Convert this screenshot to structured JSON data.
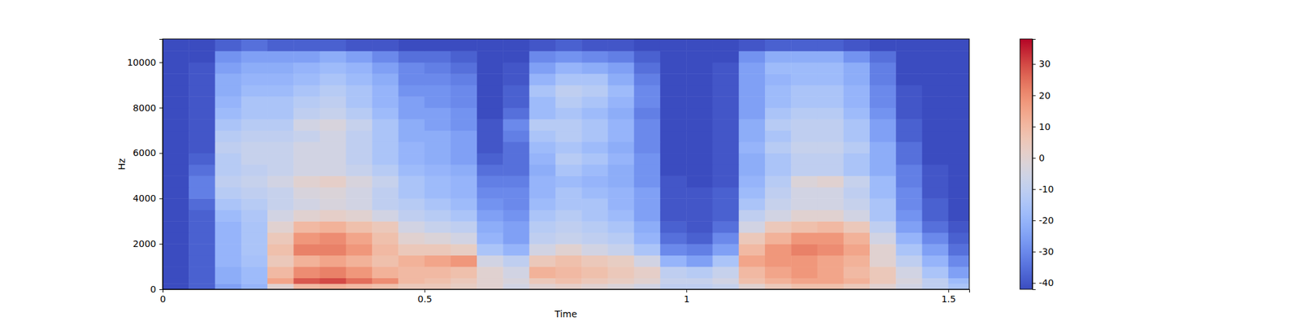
{
  "chart_data": {
    "type": "heatmap",
    "xlabel": "Time",
    "ylabel": "Hz",
    "xlim": [
      0,
      1.54
    ],
    "ylim": [
      0,
      11025
    ],
    "xticks": [
      0,
      0.5,
      1,
      1.5
    ],
    "yticks": [
      0,
      2000,
      4000,
      6000,
      8000,
      10000
    ],
    "x_bins": [
      0,
      0.05,
      0.1,
      0.15,
      0.2,
      0.25,
      0.3,
      0.35,
      0.4,
      0.45,
      0.5,
      0.55,
      0.6,
      0.65,
      0.7,
      0.75,
      0.8,
      0.85,
      0.9,
      0.95,
      1.0,
      1.05,
      1.1,
      1.15,
      1.2,
      1.25,
      1.3,
      1.35,
      1.4,
      1.45,
      1.5,
      1.54
    ],
    "y_bins": [
      0,
      250,
      500,
      1000,
      1500,
      2000,
      2500,
      3000,
      3500,
      4000,
      4500,
      5000,
      5500,
      6000,
      6500,
      7000,
      7500,
      8000,
      8500,
      9000,
      9500,
      10000,
      10500,
      11025
    ],
    "values": [
      [
        -42,
        -38,
        -25,
        -20,
        0,
        10,
        12,
        10,
        8,
        5,
        5,
        3,
        0,
        -5,
        0,
        2,
        0,
        -2,
        -5,
        -10,
        -10,
        -8,
        0,
        5,
        8,
        8,
        5,
        0,
        -5,
        -10,
        -15
      ],
      [
        -42,
        -38,
        -22,
        -18,
        15,
        28,
        30,
        25,
        20,
        10,
        8,
        5,
        0,
        -3,
        5,
        8,
        5,
        3,
        0,
        -8,
        -8,
        -5,
        8,
        12,
        15,
        15,
        12,
        5,
        -3,
        -10,
        -18
      ],
      [
        -42,
        -38,
        -22,
        -18,
        10,
        20,
        22,
        18,
        12,
        10,
        10,
        8,
        0,
        -5,
        12,
        10,
        8,
        5,
        2,
        -10,
        -12,
        -8,
        10,
        15,
        18,
        15,
        10,
        5,
        -5,
        -15,
        -25
      ],
      [
        -42,
        -38,
        -20,
        -16,
        5,
        12,
        15,
        12,
        8,
        12,
        15,
        18,
        -5,
        -10,
        5,
        8,
        5,
        3,
        -5,
        -20,
        -25,
        -15,
        15,
        18,
        18,
        15,
        12,
        0,
        -10,
        -20,
        -30
      ],
      [
        -42,
        -38,
        -20,
        -15,
        8,
        22,
        22,
        18,
        10,
        5,
        5,
        3,
        -15,
        -20,
        -5,
        0,
        -5,
        -8,
        -15,
        -30,
        -32,
        -25,
        10,
        18,
        22,
        20,
        15,
        0,
        -15,
        -25,
        -35
      ],
      [
        -42,
        -38,
        -20,
        -15,
        5,
        18,
        20,
        15,
        8,
        0,
        -2,
        -5,
        -20,
        -25,
        -10,
        -8,
        -10,
        -12,
        -20,
        -35,
        -38,
        -30,
        5,
        12,
        18,
        18,
        12,
        -5,
        -20,
        -30,
        -38
      ],
      [
        -42,
        -38,
        -20,
        -15,
        0,
        10,
        12,
        8,
        5,
        -5,
        -8,
        -10,
        -22,
        -25,
        -12,
        -10,
        -12,
        -15,
        -22,
        -38,
        -40,
        -35,
        -5,
        5,
        8,
        10,
        5,
        -10,
        -25,
        -35,
        -40
      ],
      [
        -42,
        -38,
        -18,
        -14,
        -5,
        0,
        2,
        0,
        -5,
        -10,
        -12,
        -15,
        -25,
        -28,
        -15,
        -12,
        -15,
        -18,
        -25,
        -40,
        -40,
        -38,
        -10,
        -5,
        0,
        0,
        -5,
        -15,
        -28,
        -38,
        -42
      ],
      [
        -42,
        -36,
        -15,
        -12,
        -8,
        -5,
        -3,
        -5,
        -10,
        -12,
        -15,
        -18,
        -28,
        -30,
        -18,
        -15,
        -15,
        -20,
        -25,
        -40,
        -40,
        -38,
        -15,
        -8,
        -5,
        -5,
        -8,
        -15,
        -30,
        -38,
        -42
      ],
      [
        -42,
        -32,
        -12,
        -10,
        -8,
        -3,
        -2,
        -5,
        -10,
        -15,
        -18,
        -20,
        -30,
        -30,
        -20,
        -15,
        -18,
        -20,
        -25,
        -40,
        -40,
        -38,
        -18,
        -10,
        -5,
        -5,
        -10,
        -18,
        -30,
        -40,
        -42
      ],
      [
        -42,
        -32,
        -10,
        -8,
        -5,
        0,
        2,
        -3,
        -8,
        -15,
        -18,
        -20,
        -32,
        -32,
        -20,
        -18,
        -20,
        -22,
        -28,
        -40,
        -42,
        -40,
        -20,
        -12,
        -2,
        0,
        -8,
        -18,
        -32,
        -40,
        -42
      ],
      [
        -42,
        -35,
        -12,
        -10,
        -8,
        -5,
        -5,
        -8,
        -12,
        -18,
        -20,
        -22,
        -35,
        -35,
        -22,
        -15,
        -18,
        -22,
        -28,
        -42,
        -42,
        -40,
        -22,
        -15,
        -10,
        -10,
        -15,
        -22,
        -32,
        -40,
        -42
      ],
      [
        -42,
        -38,
        -12,
        -8,
        -8,
        -5,
        -5,
        -10,
        -15,
        -20,
        -22,
        -25,
        -38,
        -35,
        -20,
        -12,
        -15,
        -20,
        -28,
        -42,
        -42,
        -40,
        -22,
        -15,
        -10,
        -10,
        -15,
        -22,
        -35,
        -42,
        -42
      ],
      [
        -42,
        -40,
        -10,
        -8,
        -8,
        -5,
        -5,
        -10,
        -15,
        -20,
        -22,
        -25,
        -40,
        -35,
        -18,
        -15,
        -18,
        -22,
        -30,
        -42,
        -42,
        -40,
        -20,
        -12,
        -8,
        -8,
        -12,
        -22,
        -35,
        -42,
        -42
      ],
      [
        -42,
        -40,
        -12,
        -10,
        -10,
        -8,
        -5,
        -10,
        -15,
        -22,
        -22,
        -25,
        -40,
        -32,
        -15,
        -12,
        -15,
        -20,
        -30,
        -42,
        -42,
        -40,
        -22,
        -15,
        -10,
        -10,
        -15,
        -25,
        -38,
        -42,
        -42
      ],
      [
        -42,
        -40,
        -15,
        -12,
        -12,
        -5,
        -3,
        -8,
        -15,
        -22,
        -25,
        -28,
        -40,
        -30,
        -12,
        -12,
        -15,
        -20,
        -30,
        -42,
        -42,
        -40,
        -22,
        -12,
        -10,
        -10,
        -15,
        -25,
        -38,
        -42,
        -42
      ],
      [
        -42,
        -40,
        -18,
        -15,
        -15,
        -10,
        -8,
        -12,
        -18,
        -25,
        -25,
        -28,
        -42,
        -35,
        -18,
        -15,
        -18,
        -22,
        -32,
        -42,
        -42,
        -40,
        -25,
        -15,
        -12,
        -12,
        -18,
        -28,
        -40,
        -42,
        -42
      ],
      [
        -42,
        -40,
        -20,
        -15,
        -15,
        -12,
        -10,
        -15,
        -20,
        -25,
        -28,
        -30,
        -42,
        -38,
        -18,
        -12,
        -15,
        -20,
        -30,
        -42,
        -42,
        -40,
        -25,
        -18,
        -15,
        -15,
        -20,
        -30,
        -40,
        -42,
        -42
      ],
      [
        -42,
        -40,
        -22,
        -18,
        -18,
        -15,
        -12,
        -15,
        -20,
        -28,
        -28,
        -30,
        -42,
        -38,
        -15,
        -10,
        -12,
        -18,
        -30,
        -42,
        -42,
        -40,
        -25,
        -18,
        -15,
        -15,
        -20,
        -30,
        -40,
        -42,
        -42
      ],
      [
        -42,
        -40,
        -22,
        -20,
        -20,
        -18,
        -15,
        -18,
        -22,
        -30,
        -30,
        -32,
        -42,
        -40,
        -20,
        -15,
        -15,
        -22,
        -32,
        -42,
        -42,
        -40,
        -25,
        -20,
        -18,
        -18,
        -22,
        -32,
        -42,
        -42,
        -42
      ],
      [
        -42,
        -40,
        -25,
        -22,
        -22,
        -20,
        -18,
        -20,
        -25,
        -30,
        -32,
        -35,
        -42,
        -40,
        -25,
        -20,
        -22,
        -25,
        -35,
        -42,
        -42,
        -40,
        -25,
        -18,
        -18,
        -18,
        -22,
        -32,
        -42,
        -42,
        -42
      ],
      [
        -42,
        -42,
        -28,
        -25,
        -25,
        -25,
        -22,
        -25,
        -30,
        -35,
        -35,
        -38,
        -42,
        -42,
        -30,
        -28,
        -30,
        -32,
        -38,
        -42,
        -42,
        -42,
        -28,
        -22,
        -22,
        -22,
        -28,
        -35,
        -42,
        -42,
        -42
      ],
      [
        -42,
        -42,
        -38,
        -35,
        -38,
        -38,
        -38,
        -40,
        -40,
        -42,
        -42,
        -42,
        -42,
        -42,
        -40,
        -38,
        -40,
        -40,
        -42,
        -42,
        -42,
        -42,
        -40,
        -38,
        -38,
        -38,
        -40,
        -42,
        -42,
        -42,
        -42
      ]
    ],
    "colorbar_range": [
      -42,
      38
    ],
    "colorbar_ticks": [
      -40,
      -30,
      -20,
      -10,
      0,
      10,
      20,
      30
    ]
  }
}
